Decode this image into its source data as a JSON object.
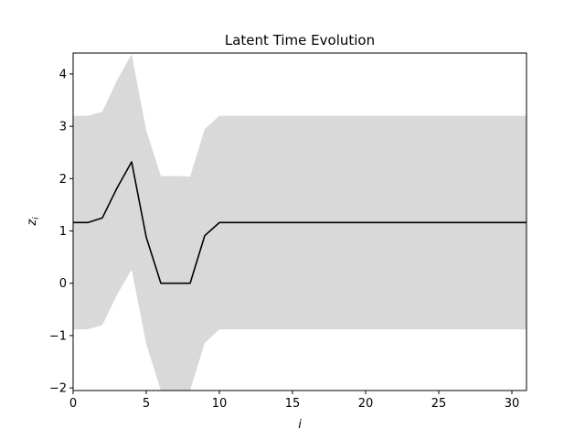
{
  "chart_data": {
    "type": "line",
    "title": "Latent Time Evolution",
    "xlabel": "i",
    "ylabel": "z",
    "ylabel_subscript": "i",
    "xlim": [
      0,
      31
    ],
    "ylim": [
      -2.05,
      4.4
    ],
    "x_ticks": [
      0,
      5,
      10,
      15,
      20,
      25,
      30
    ],
    "y_ticks": [
      -2,
      -1,
      0,
      1,
      2,
      3,
      4
    ],
    "y_tick_labels": [
      "−2",
      "−1",
      "0",
      "1",
      "2",
      "3",
      "4"
    ],
    "grid": false,
    "colors": {
      "line": "#000000",
      "band": "#d9d9d9"
    },
    "series": [
      {
        "x": [
          0,
          1,
          2,
          3,
          4,
          5,
          6,
          7,
          8,
          9,
          10,
          11,
          12,
          13,
          14,
          15,
          16,
          17,
          18,
          19,
          20,
          21,
          22,
          23,
          24,
          25,
          26,
          27,
          28,
          29,
          30,
          31
        ],
        "y": [
          1.16,
          1.16,
          1.25,
          1.82,
          2.32,
          0.88,
          0.0,
          0.0,
          0.0,
          0.91,
          1.16,
          1.16,
          1.16,
          1.16,
          1.16,
          1.16,
          1.16,
          1.16,
          1.16,
          1.16,
          1.16,
          1.16,
          1.16,
          1.16,
          1.16,
          1.16,
          1.16,
          1.16,
          1.16,
          1.16,
          1.16,
          1.16
        ],
        "upper": [
          3.2,
          3.2,
          3.28,
          3.88,
          4.38,
          2.92,
          2.05,
          2.05,
          2.04,
          2.95,
          3.2,
          3.2,
          3.2,
          3.2,
          3.2,
          3.2,
          3.2,
          3.2,
          3.2,
          3.2,
          3.2,
          3.2,
          3.2,
          3.2,
          3.2,
          3.2,
          3.2,
          3.2,
          3.2,
          3.2,
          3.2,
          3.2
        ],
        "lower": [
          -0.88,
          -0.88,
          -0.8,
          -0.22,
          0.26,
          -1.16,
          -2.05,
          -2.05,
          -2.05,
          -1.14,
          -0.88,
          -0.88,
          -0.88,
          -0.88,
          -0.88,
          -0.88,
          -0.88,
          -0.88,
          -0.88,
          -0.88,
          -0.88,
          -0.88,
          -0.88,
          -0.88,
          -0.88,
          -0.88,
          -0.88,
          -0.88,
          -0.88,
          -0.88,
          -0.88,
          -0.88
        ]
      }
    ]
  }
}
